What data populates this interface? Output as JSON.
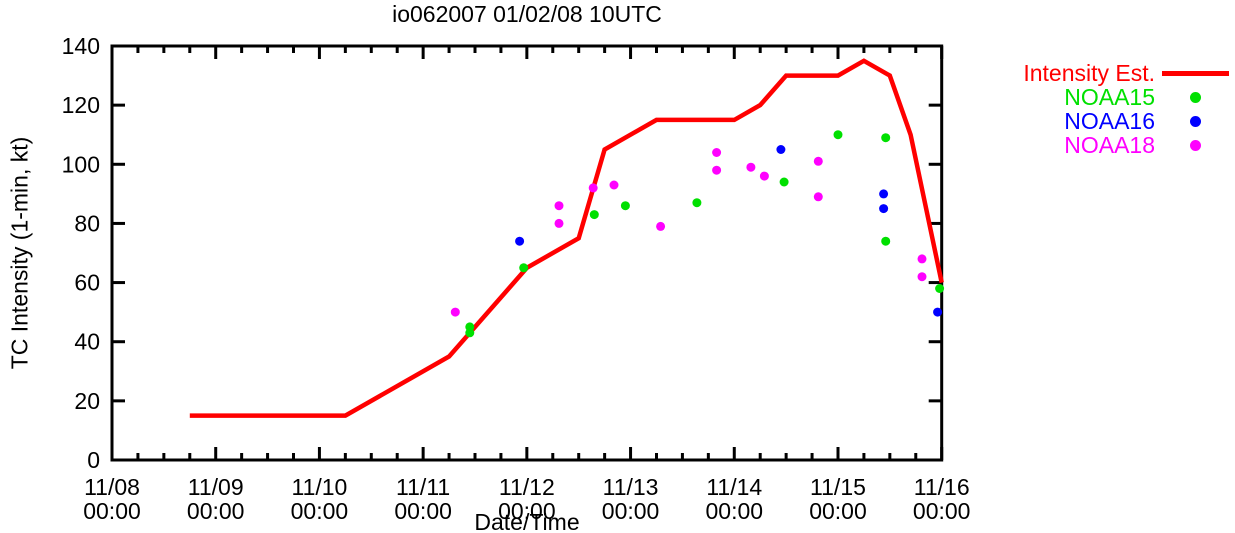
{
  "page": {
    "background": "#ffffff",
    "axis_color": "#000000"
  },
  "chart_data": {
    "type": "line",
    "title": "io062007 01/02/08 10UTC",
    "xlabel": "Date/Time",
    "ylabel": "TC Intensity (1-min, kt)",
    "xlim_days": [
      0,
      8
    ],
    "ylim": [
      0,
      140
    ],
    "grid": false,
    "legend_position": "outside-right",
    "y_ticks": [
      0,
      20,
      40,
      60,
      80,
      100,
      120,
      140
    ],
    "x_minor_tick_interval_days": 0.25,
    "x_ticks": [
      {
        "day": 0,
        "date": "11/08",
        "time": "00:00"
      },
      {
        "day": 1,
        "date": "11/09",
        "time": "00:00"
      },
      {
        "day": 2,
        "date": "11/10",
        "time": "00:00"
      },
      {
        "day": 3,
        "date": "11/11",
        "time": "00:00"
      },
      {
        "day": 4,
        "date": "11/12",
        "time": "00:00"
      },
      {
        "day": 5,
        "date": "11/13",
        "time": "00:00"
      },
      {
        "day": 6,
        "date": "11/14",
        "time": "00:00"
      },
      {
        "day": 7,
        "date": "11/15",
        "time": "00:00"
      },
      {
        "day": 8,
        "date": "11/16",
        "time": "00:00"
      }
    ],
    "legend": [
      {
        "label": "Intensity Est.",
        "color": "#ff0000",
        "marker": "line"
      },
      {
        "label": "NOAA15",
        "color": "#00e000",
        "marker": "dot"
      },
      {
        "label": "NOAA16",
        "color": "#0000ff",
        "marker": "dot"
      },
      {
        "label": "NOAA18",
        "color": "#ff00ff",
        "marker": "dot"
      }
    ],
    "series": [
      {
        "name": "Intensity Est.",
        "style": "line",
        "color": "#ff0000",
        "points_day_kt": [
          [
            0.75,
            15
          ],
          [
            2.25,
            15
          ],
          [
            3.25,
            35
          ],
          [
            4,
            65
          ],
          [
            4.5,
            75
          ],
          [
            4.75,
            105
          ],
          [
            5.25,
            115
          ],
          [
            6,
            115
          ],
          [
            6.25,
            120
          ],
          [
            6.5,
            130
          ],
          [
            7,
            130
          ],
          [
            7.25,
            135
          ],
          [
            7.5,
            130
          ],
          [
            7.7,
            110
          ],
          [
            8,
            60
          ]
        ]
      },
      {
        "name": "NOAA15",
        "style": "scatter",
        "color": "#00e000",
        "points_day_kt": [
          [
            3.45,
            45
          ],
          [
            3.45,
            43
          ],
          [
            3.97,
            65
          ],
          [
            4.65,
            83
          ],
          [
            4.95,
            86
          ],
          [
            5.64,
            87
          ],
          [
            6.48,
            94
          ],
          [
            7,
            110
          ],
          [
            7.46,
            109
          ],
          [
            7.46,
            74
          ],
          [
            7.98,
            58
          ]
        ]
      },
      {
        "name": "NOAA16",
        "style": "scatter",
        "color": "#0000ff",
        "points_day_kt": [
          [
            3.93,
            74
          ],
          [
            6.45,
            105
          ],
          [
            7.44,
            90
          ],
          [
            7.44,
            85
          ],
          [
            7.96,
            50
          ]
        ]
      },
      {
        "name": "NOAA18",
        "style": "scatter",
        "color": "#ff00ff",
        "points_day_kt": [
          [
            3.31,
            50
          ],
          [
            4.31,
            86
          ],
          [
            4.31,
            80
          ],
          [
            4.64,
            92
          ],
          [
            4.84,
            93
          ],
          [
            5.29,
            79
          ],
          [
            5.83,
            104
          ],
          [
            5.83,
            98
          ],
          [
            6.16,
            99
          ],
          [
            6.29,
            96
          ],
          [
            6.81,
            101
          ],
          [
            6.81,
            89
          ],
          [
            7.81,
            68
          ],
          [
            7.81,
            62
          ]
        ]
      }
    ]
  }
}
